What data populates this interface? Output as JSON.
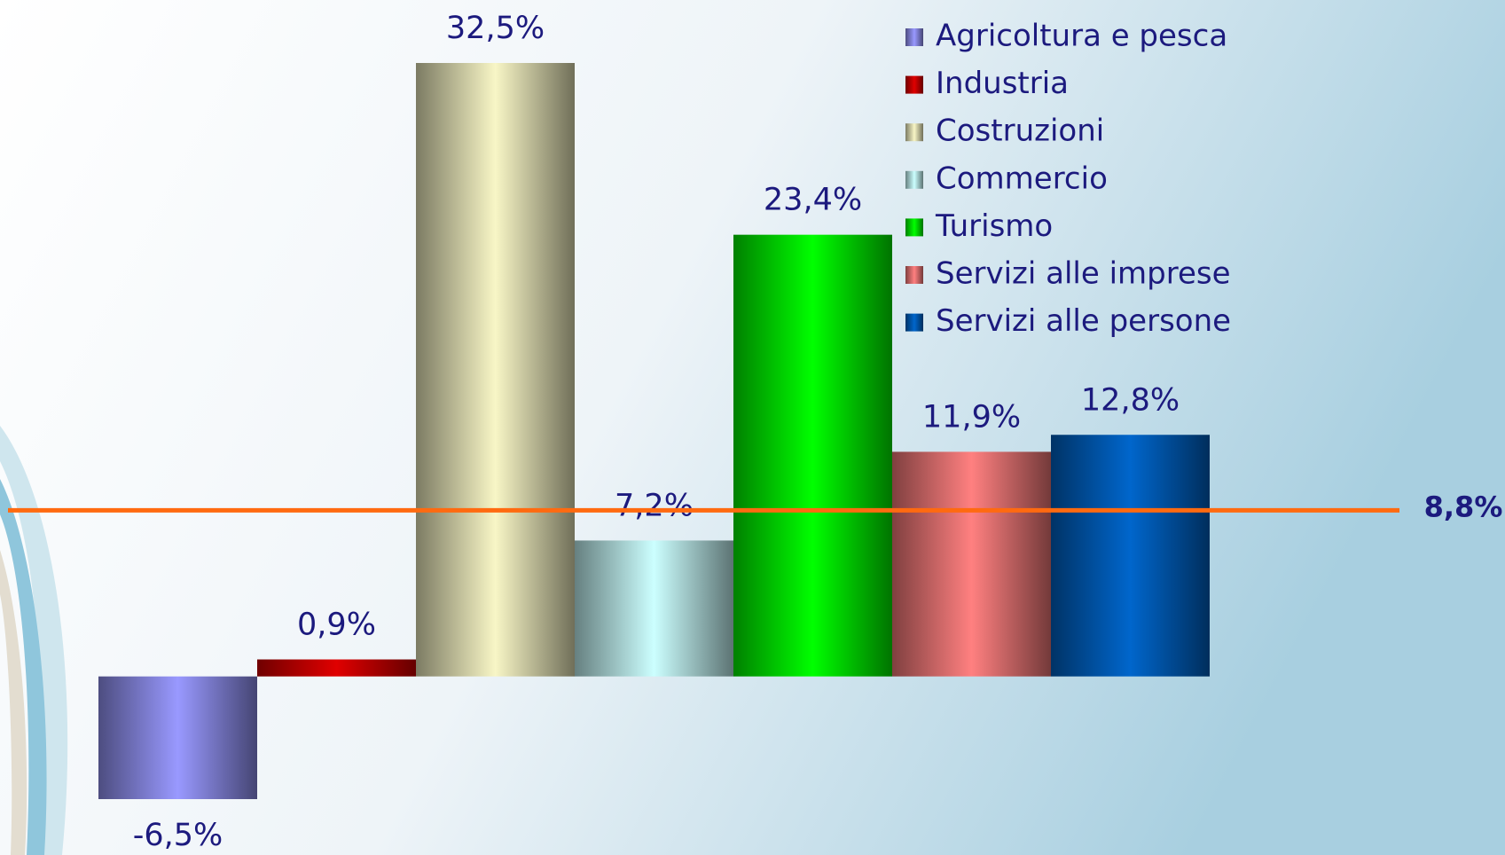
{
  "chart_data": {
    "type": "bar",
    "categories": [
      null
    ],
    "series": [
      {
        "name": "Agricoltura e pesca",
        "color": "#9999ff",
        "values": [
          -6.5
        ],
        "value_labels": [
          "-6,5%"
        ]
      },
      {
        "name": "Industria",
        "color": "#e00000",
        "values": [
          0.9
        ],
        "value_labels": [
          "0,9%"
        ]
      },
      {
        "name": "Costruzioni",
        "color": "#f8f6c6",
        "values": [
          32.5
        ],
        "value_labels": [
          "32,5%"
        ]
      },
      {
        "name": "Commercio",
        "color": "#ccffff",
        "values": [
          7.2
        ],
        "value_labels": [
          "7,2%"
        ]
      },
      {
        "name": "Turismo",
        "color": "#00ff00",
        "values": [
          23.4
        ],
        "value_labels": [
          "23,4%"
        ]
      },
      {
        "name": "Servizi alle imprese",
        "color": "#ff8080",
        "values": [
          11.9
        ],
        "value_labels": [
          "11,9%"
        ]
      },
      {
        "name": "Servizi alle persone",
        "color": "#0066cc",
        "values": [
          12.8
        ],
        "value_labels": [
          "12,8%"
        ]
      }
    ],
    "reference_line": {
      "value": 8.8,
      "label": "8,8%",
      "color": "#ff6a10"
    }
  }
}
